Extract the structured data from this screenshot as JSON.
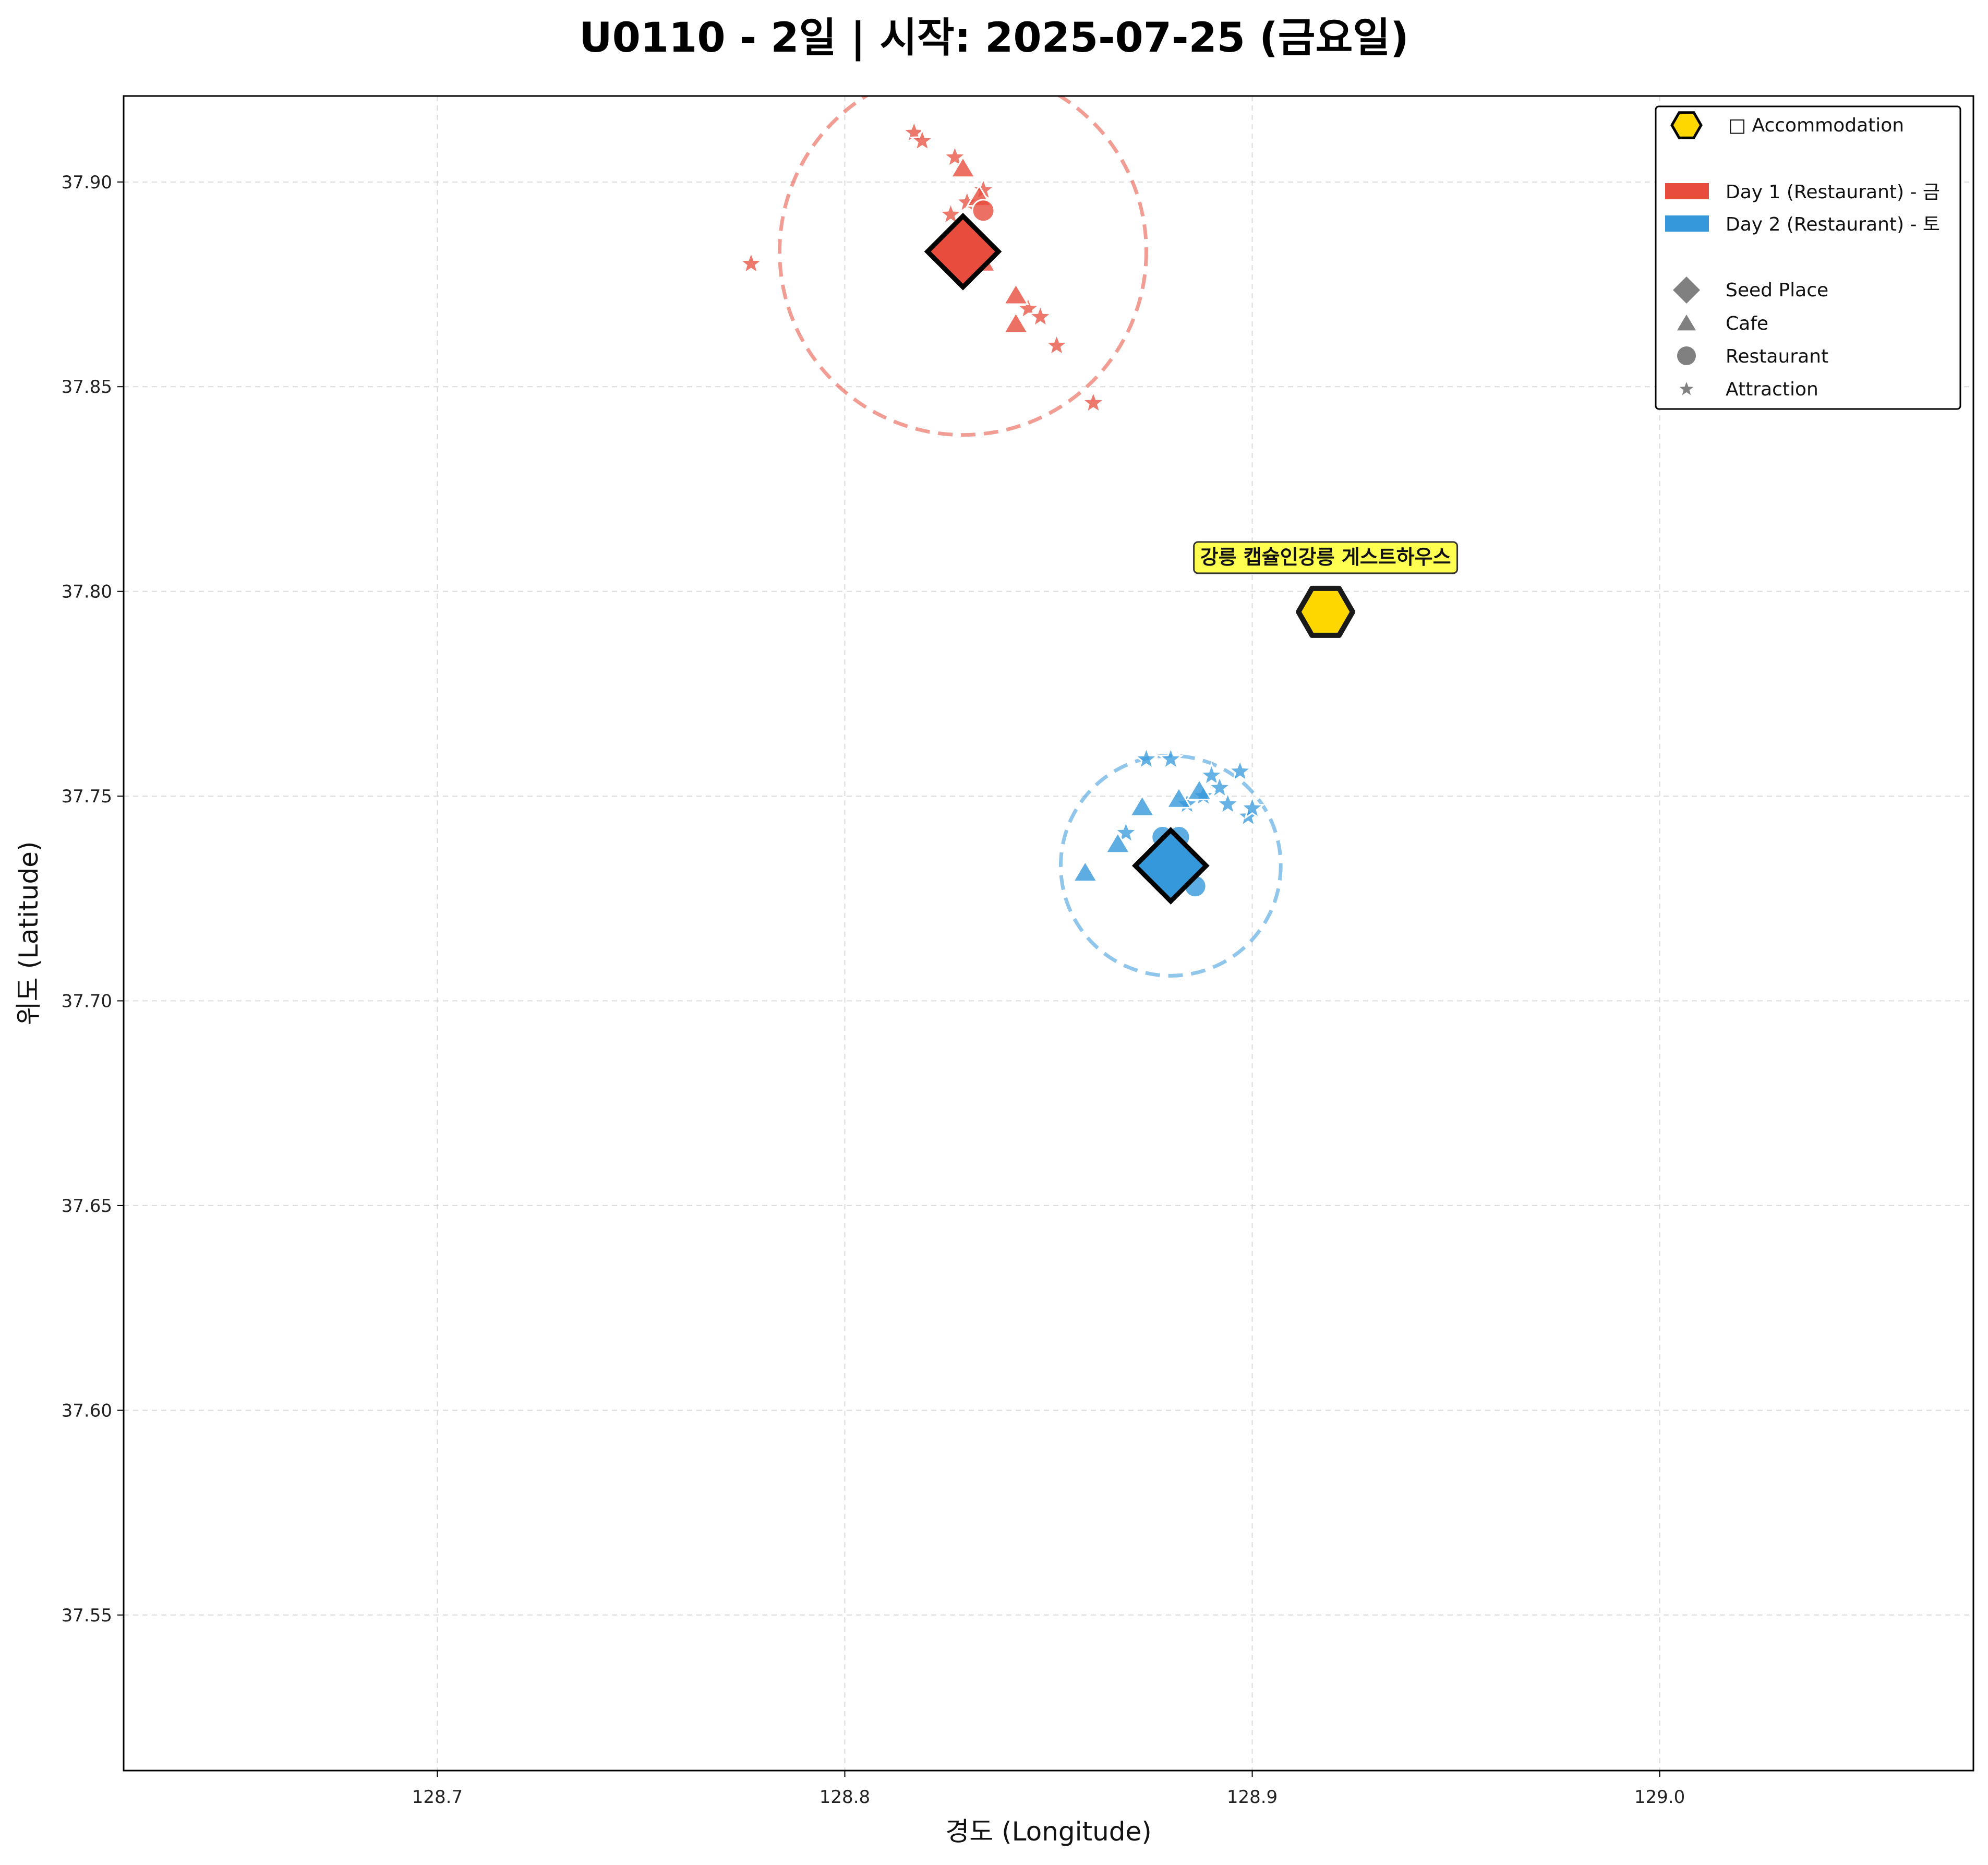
{
  "title": "U0110 - 2일 | 시작: 2025-07-25 (금요일)",
  "chart_data": {
    "type": "scatter",
    "xlabel": "경도 (Longitude)",
    "ylabel": "위도 (Latitude)",
    "xlim": [
      128.623,
      129.077
    ],
    "ylim": [
      37.512,
      37.921
    ],
    "xticks": [
      "128.7",
      "128.8",
      "128.9",
      "129.0"
    ],
    "xtick_values": [
      128.7,
      128.8,
      128.9,
      129.0
    ],
    "yticks": [
      "37.55",
      "37.60",
      "37.65",
      "37.70",
      "37.75",
      "37.80",
      "37.85",
      "37.90"
    ],
    "ytick_values": [
      37.55,
      37.6,
      37.65,
      37.7,
      37.75,
      37.8,
      37.85,
      37.9
    ],
    "grid": true,
    "legend": {
      "placement": "top-right",
      "accommodation": "□ Accommodation",
      "day1": "Day 1 (Restaurant) - 금",
      "day2": "Day 2 (Restaurant) - 토",
      "seed": "Seed Place",
      "cafe": "Cafe",
      "restaurant": "Restaurant",
      "attraction": "Attraction"
    },
    "colors": {
      "day1": "#e74c3c",
      "day2": "#3498db",
      "accommodation": "#ffd700",
      "legend_marker": "#808080",
      "annotation_bg": "#ffff33"
    },
    "accommodation": {
      "name": "강릉 캡슐인강릉 게스트하우스",
      "lon": 128.918,
      "lat": 37.795
    },
    "series": [
      {
        "name": "Day 1 (Restaurant) - 금",
        "color": "#e74c3c",
        "seed": [
          128.829,
          37.883
        ],
        "radius_deg": 0.045,
        "cafes": [
          [
            128.829,
            37.903
          ],
          [
            128.833,
            37.896
          ],
          [
            128.842,
            37.872
          ],
          [
            128.842,
            37.865
          ],
          [
            128.834,
            37.88
          ]
        ],
        "restaurants": [
          [
            128.834,
            37.893
          ],
          [
            128.831,
            37.885
          ]
        ],
        "attractions": [
          [
            128.817,
            37.912
          ],
          [
            128.819,
            37.91
          ],
          [
            128.827,
            37.906
          ],
          [
            128.834,
            37.898
          ],
          [
            128.826,
            37.892
          ],
          [
            128.777,
            37.88
          ],
          [
            128.845,
            37.869
          ],
          [
            128.848,
            37.867
          ],
          [
            128.852,
            37.86
          ],
          [
            128.861,
            37.846
          ],
          [
            128.83,
            37.895
          ]
        ]
      },
      {
        "name": "Day 2 (Restaurant) - 토",
        "color": "#3498db",
        "seed": [
          128.88,
          37.733
        ],
        "radius_deg": 0.027,
        "cafes": [
          [
            128.873,
            37.747
          ],
          [
            128.867,
            37.738
          ],
          [
            128.859,
            37.731
          ],
          [
            128.882,
            37.749
          ],
          [
            128.887,
            37.751
          ]
        ],
        "restaurants": [
          [
            128.878,
            37.74
          ],
          [
            128.882,
            37.74
          ],
          [
            128.886,
            37.728
          ],
          [
            128.88,
            37.735
          ]
        ],
        "attractions": [
          [
            128.874,
            37.759
          ],
          [
            128.88,
            37.759
          ],
          [
            128.869,
            37.741
          ],
          [
            128.884,
            37.748
          ],
          [
            128.89,
            37.755
          ],
          [
            128.897,
            37.756
          ],
          [
            128.892,
            37.752
          ],
          [
            128.894,
            37.748
          ],
          [
            128.899,
            37.745
          ],
          [
            128.9,
            37.747
          ],
          [
            128.888,
            37.75
          ]
        ]
      }
    ]
  }
}
